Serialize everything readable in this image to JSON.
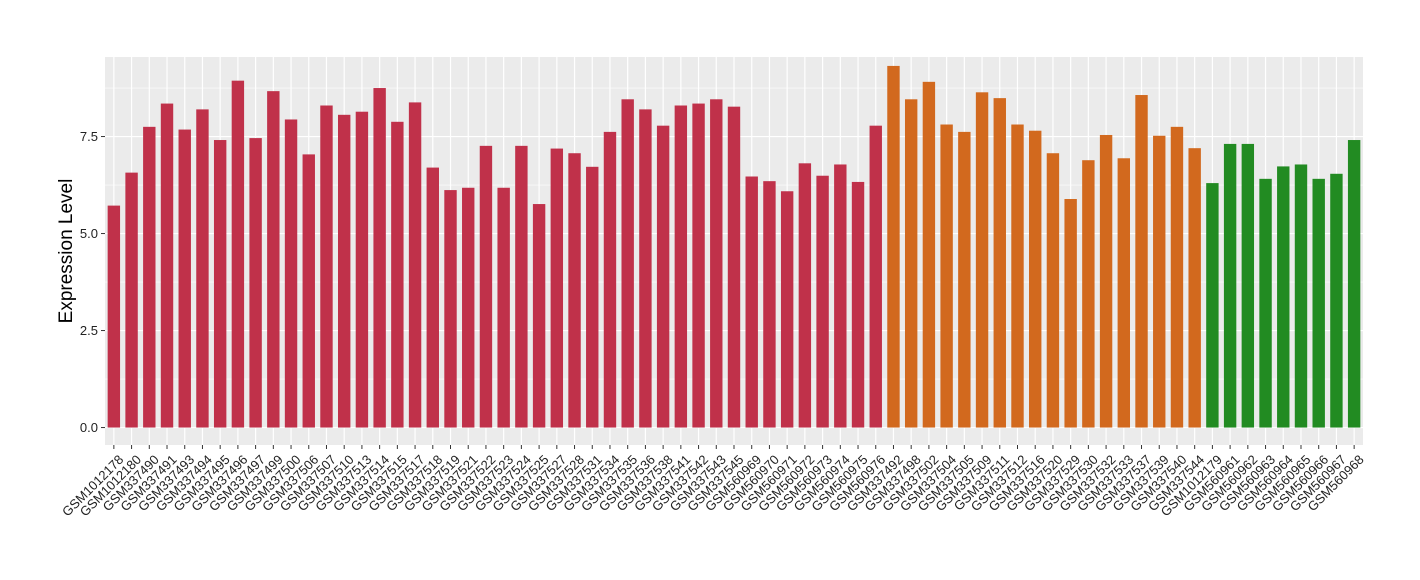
{
  "chart_data": {
    "type": "bar",
    "ylabel": "Expression Level",
    "xlabel": "",
    "ylim": [
      -0.45,
      9.55
    ],
    "y_ticks": [
      0.0,
      2.5,
      5.0,
      7.5
    ],
    "y_tick_labels": [
      "0.0",
      "2.5",
      "5.0",
      "7.5"
    ],
    "grid": true,
    "legend": "none",
    "colors": {
      "red": "#C0314A",
      "orange": "#D2691E",
      "green": "#228B22",
      "panel": "#EBEBEB",
      "grid": "#FFFFFF"
    },
    "categories": [
      "GSM1012178",
      "GSM1012180",
      "GSM337490",
      "GSM337491",
      "GSM337493",
      "GSM337494",
      "GSM337495",
      "GSM337496",
      "GSM337497",
      "GSM337499",
      "GSM337500",
      "GSM337506",
      "GSM337507",
      "GSM337510",
      "GSM337513",
      "GSM337514",
      "GSM337515",
      "GSM337517",
      "GSM337518",
      "GSM337519",
      "GSM337521",
      "GSM337522",
      "GSM337523",
      "GSM337524",
      "GSM337525",
      "GSM337527",
      "GSM337528",
      "GSM337531",
      "GSM337534",
      "GSM337535",
      "GSM337536",
      "GSM337538",
      "GSM337541",
      "GSM337542",
      "GSM337543",
      "GSM337545",
      "GSM560969",
      "GSM560970",
      "GSM560971",
      "GSM560972",
      "GSM560973",
      "GSM560974",
      "GSM560975",
      "GSM560976",
      "GSM337492",
      "GSM337498",
      "GSM337502",
      "GSM337504",
      "GSM337505",
      "GSM337509",
      "GSM337511",
      "GSM337512",
      "GSM337516",
      "GSM337520",
      "GSM337529",
      "GSM337530",
      "GSM337532",
      "GSM337533",
      "GSM337537",
      "GSM337539",
      "GSM337540",
      "GSM337544",
      "GSM1012179",
      "GSM560961",
      "GSM560962",
      "GSM560963",
      "GSM560964",
      "GSM560965",
      "GSM560966",
      "GSM560967",
      "GSM560968"
    ],
    "values": [
      5.72,
      6.57,
      7.75,
      8.35,
      7.68,
      8.2,
      7.41,
      8.94,
      7.46,
      8.67,
      7.94,
      7.04,
      8.3,
      8.06,
      8.14,
      8.75,
      7.88,
      8.38,
      6.7,
      6.12,
      6.18,
      7.26,
      6.18,
      7.26,
      5.76,
      7.19,
      7.07,
      6.72,
      7.62,
      8.46,
      8.2,
      7.78,
      8.3,
      8.35,
      8.46,
      8.27,
      6.47,
      6.35,
      6.09,
      6.81,
      6.49,
      6.78,
      6.33,
      7.78,
      9.32,
      8.46,
      8.91,
      7.81,
      7.62,
      8.64,
      8.49,
      7.81,
      7.65,
      7.07,
      5.89,
      6.89,
      7.54,
      6.94,
      8.57,
      7.52,
      7.75,
      7.2,
      6.3,
      7.31,
      7.31,
      6.41,
      6.73,
      6.78,
      6.41,
      6.54,
      7.41
    ],
    "bar_color_keys": [
      "red",
      "red",
      "red",
      "red",
      "red",
      "red",
      "red",
      "red",
      "red",
      "red",
      "red",
      "red",
      "red",
      "red",
      "red",
      "red",
      "red",
      "red",
      "red",
      "red",
      "red",
      "red",
      "red",
      "red",
      "red",
      "red",
      "red",
      "red",
      "red",
      "red",
      "red",
      "red",
      "red",
      "red",
      "red",
      "red",
      "red",
      "red",
      "red",
      "red",
      "red",
      "red",
      "red",
      "red",
      "orange",
      "orange",
      "orange",
      "orange",
      "orange",
      "orange",
      "orange",
      "orange",
      "orange",
      "orange",
      "orange",
      "orange",
      "orange",
      "orange",
      "orange",
      "orange",
      "orange",
      "orange",
      "green",
      "green",
      "green",
      "green",
      "green",
      "green",
      "green",
      "green",
      "green"
    ]
  }
}
